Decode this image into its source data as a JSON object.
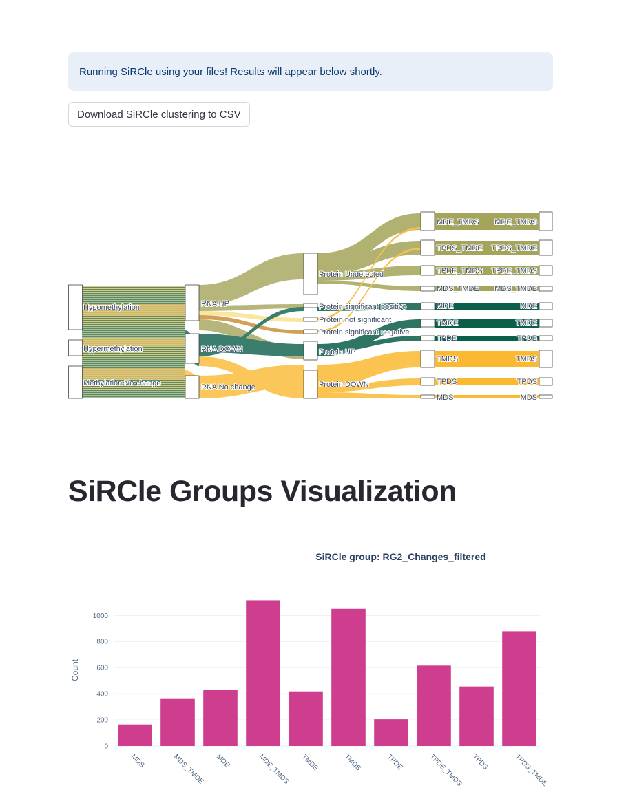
{
  "info": {
    "message": "Running SiRCle using your files! Results will appear below shortly."
  },
  "download": {
    "label": "Download SiRCle clustering to CSV"
  },
  "sankey": {
    "colors": {
      "olive": "#a4a55a",
      "green": "#0b5e49",
      "orange": "#fbb931",
      "mixed": "#8a9a4a",
      "pale": "#f7e08a"
    },
    "columns": [
      [
        "Hypomethylation",
        "Hypermethylation",
        "Methylation No change"
      ],
      [
        "RNA UP",
        "RNA DOWN",
        "RNA No change"
      ],
      [
        "Protein Undetected",
        "Protein significant positive",
        "Protein not significant",
        "Protein significant negative",
        "Protein UP",
        "Protein DOWN"
      ],
      [
        "MDE_TMDS",
        "TPDS_TMDE",
        "TPDE_TMDS",
        "MDS_TMDE",
        "MDE",
        "TMDE",
        "TPDE",
        "TMDS",
        "TPDS",
        "MDS"
      ]
    ]
  },
  "section": {
    "title": "SiRCle Groups Visualization"
  },
  "chart_data": {
    "type": "bar",
    "title": "SiRCle group: RG2_Changes_filtered",
    "xlabel": "",
    "ylabel": "Count",
    "categories": [
      "MDS",
      "MDS_TMDE",
      "MDE",
      "MDE_TMDS",
      "TMDE",
      "TMDS",
      "TPDE",
      "TPDE_TMDS",
      "TPDS",
      "TPDS_TMDE"
    ],
    "values": [
      165,
      360,
      430,
      1115,
      418,
      1050,
      205,
      615,
      455,
      878
    ],
    "yticks": [
      0,
      200,
      400,
      600,
      800,
      1000
    ],
    "ylim": [
      0,
      1170
    ],
    "bar_color": "#cf3d8e",
    "grid": true
  }
}
